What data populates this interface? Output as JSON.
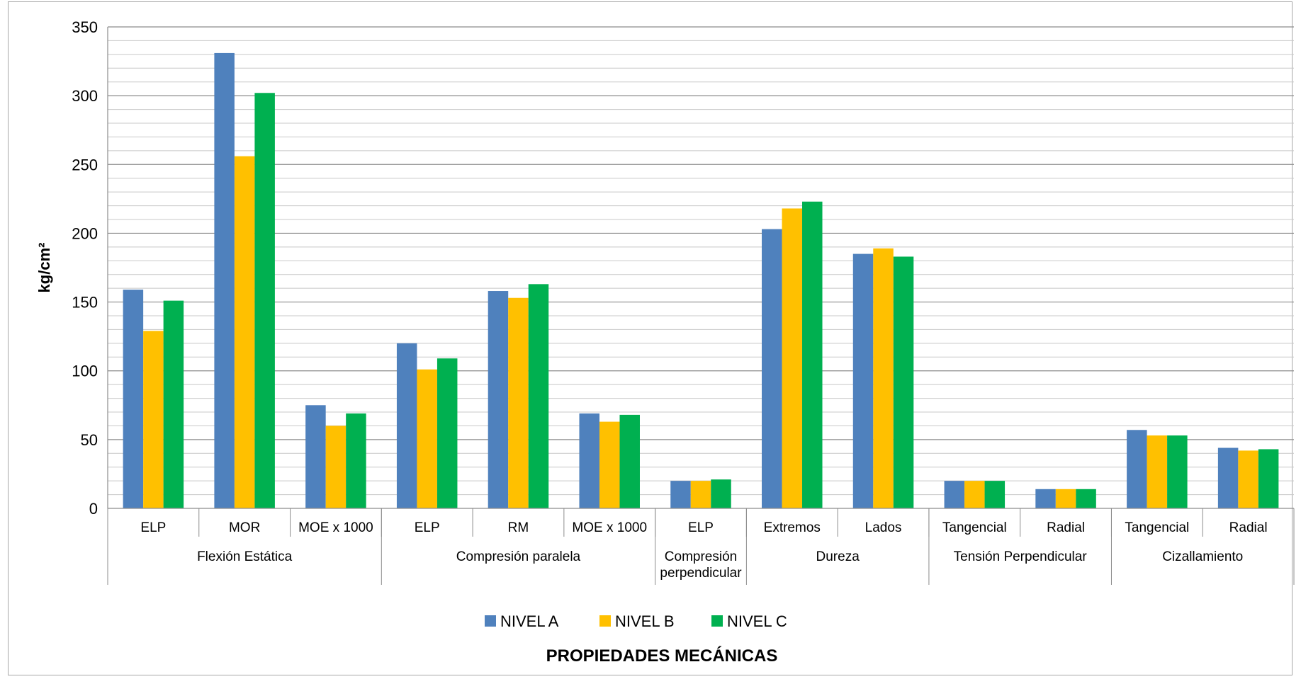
{
  "chart_data": {
    "type": "bar",
    "title": "",
    "xlabel": "PROPIEDADES MECÁNICAS",
    "ylabel": "kg/cm²",
    "ylim": [
      0,
      350
    ],
    "yticks": [
      "0",
      "50",
      "100",
      "150",
      "200",
      "250",
      "300",
      "350"
    ],
    "grid": true,
    "legend_position": "bottom",
    "categories": [
      "ELP",
      "MOR",
      "MOE x 1000",
      "ELP",
      "RM",
      "MOE x 1000",
      "ELP",
      "Extremos",
      "Lados",
      "Tangencial",
      "Radial",
      "Tangencial",
      "Radial"
    ],
    "groups": [
      {
        "label": "Flexión Estática",
        "lines": [
          "Flexión Estática"
        ],
        "span": 3
      },
      {
        "label": "Compresión paralela",
        "lines": [
          "Compresión paralela"
        ],
        "span": 3
      },
      {
        "label": "Compresión perpendicular",
        "lines": [
          "Compresión",
          "perpendicular"
        ],
        "span": 1
      },
      {
        "label": "Dureza",
        "lines": [
          "Dureza"
        ],
        "span": 2
      },
      {
        "label": "Tensión Perpendicular",
        "lines": [
          "Tensión Perpendicular"
        ],
        "span": 2
      },
      {
        "label": "Cizallamiento",
        "lines": [
          "Cizallamiento"
        ],
        "span": 2
      }
    ],
    "series": [
      {
        "name": "NIVEL A",
        "color": "#4f81bd",
        "values": [
          159,
          331,
          75,
          120,
          158,
          69,
          20,
          203,
          185,
          20,
          14,
          57,
          44
        ]
      },
      {
        "name": "NIVEL B",
        "color": "#ffc000",
        "values": [
          129,
          256,
          60,
          101,
          153,
          63,
          20,
          218,
          189,
          20,
          14,
          53,
          42
        ]
      },
      {
        "name": "NIVEL C",
        "color": "#00b050",
        "values": [
          151,
          302,
          69,
          109,
          163,
          68,
          21,
          223,
          183,
          20,
          14,
          53,
          43
        ]
      }
    ]
  }
}
